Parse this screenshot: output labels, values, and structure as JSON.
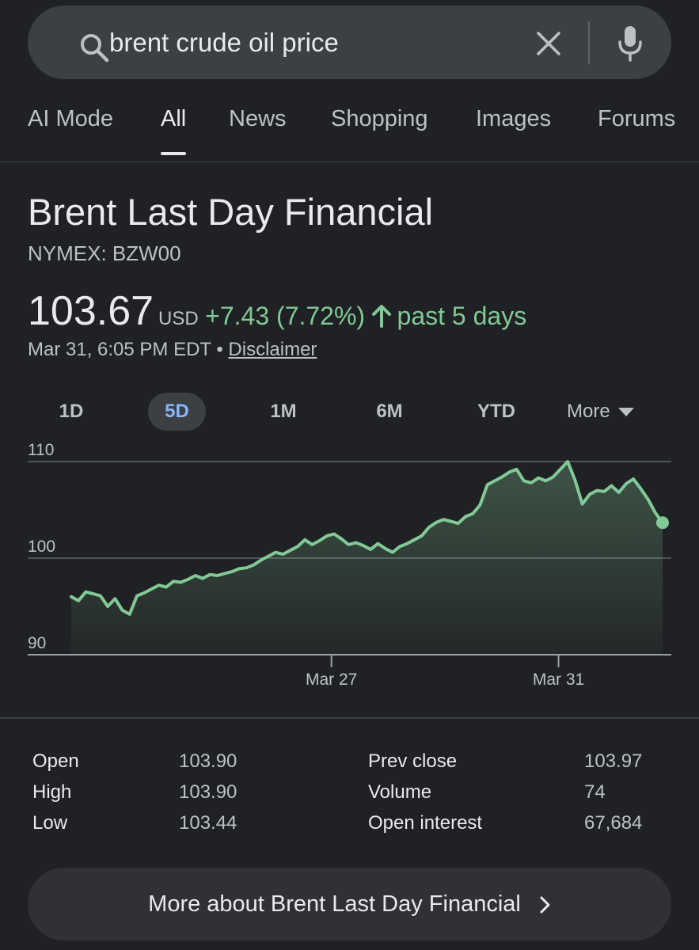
{
  "search": {
    "query": "brent crude oil price",
    "icons": {
      "search": "search-icon",
      "clear": "close-icon",
      "voice": "mic-icon"
    }
  },
  "tabs": [
    {
      "label": "AI Mode",
      "active": false
    },
    {
      "label": "All",
      "active": true
    },
    {
      "label": "News",
      "active": false
    },
    {
      "label": "Shopping",
      "active": false
    },
    {
      "label": "Images",
      "active": false
    },
    {
      "label": "Forums",
      "active": false
    }
  ],
  "quote": {
    "name": "Brent Last Day Financial",
    "ticker": "NYMEX: BZW00",
    "price": "103.67",
    "currency": "USD",
    "change": "+7.43 (7.72%)",
    "period": "past 5 days",
    "timestamp": "Mar 31, 6:05 PM EDT",
    "separator": "•",
    "disclaimer": "Disclaimer",
    "change_color": "#81c995"
  },
  "ranges": {
    "items": [
      "1D",
      "5D",
      "1M",
      "6M",
      "YTD"
    ],
    "active": "5D",
    "more_label": "More"
  },
  "chart_data": {
    "type": "area",
    "y_ticks": [
      "110",
      "100",
      "90"
    ],
    "ylim": [
      90,
      110
    ],
    "x_ticks": [
      "Mar 27",
      "Mar 31"
    ],
    "line_color": "#81c995",
    "grid": true,
    "series": [
      {
        "values": [
          96.0,
          95.6,
          96.5,
          96.3,
          96.1,
          95.0,
          95.8,
          94.6,
          94.2,
          96.1,
          96.4,
          96.8,
          97.2,
          97.0,
          97.6,
          97.5,
          97.8,
          98.2,
          97.9,
          98.3,
          98.2,
          98.4,
          98.6,
          98.9,
          99.0,
          99.3,
          99.8,
          100.2,
          100.6,
          100.4,
          100.8,
          101.2,
          101.9,
          101.4,
          101.8,
          102.3,
          102.5,
          102.0,
          101.4,
          101.6,
          101.3,
          100.9,
          101.5,
          101.0,
          100.6,
          101.2,
          101.5,
          101.9,
          102.3,
          103.2,
          103.7,
          104.0,
          103.8,
          103.6,
          104.3,
          104.6,
          105.5,
          107.6,
          108.0,
          108.4,
          108.9,
          109.2,
          108.0,
          107.8,
          108.3,
          108.0,
          108.4,
          109.2,
          110.0,
          108.1,
          105.6,
          106.6,
          107.0,
          106.9,
          107.5,
          106.8,
          107.7,
          108.2,
          107.2,
          106.1,
          104.7,
          103.67
        ]
      }
    ]
  },
  "stats": [
    {
      "label": "Open",
      "value": "103.90"
    },
    {
      "label": "High",
      "value": "103.90"
    },
    {
      "label": "Low",
      "value": "103.44"
    },
    {
      "label": "Prev close",
      "value": "103.97"
    },
    {
      "label": "Volume",
      "value": "74"
    },
    {
      "label": "Open interest",
      "value": "67,684"
    }
  ],
  "more_button": {
    "label": "More about Brent Last Day Financial"
  }
}
